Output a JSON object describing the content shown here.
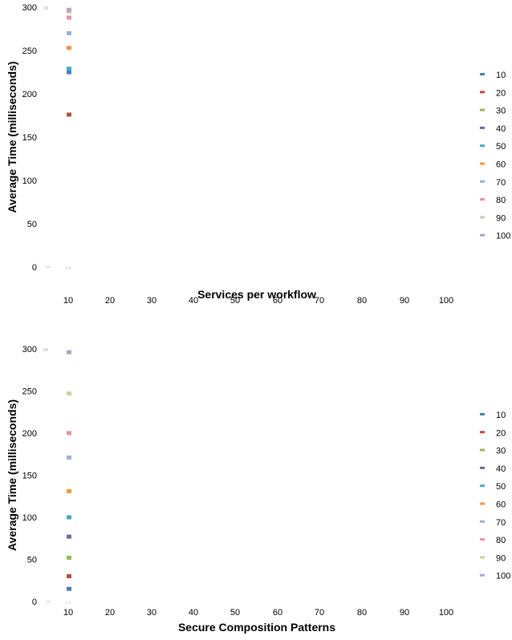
{
  "chart_data": [
    {
      "type": "scatter",
      "title": "",
      "xlabel": "Services per workflow",
      "ylabel": "Average Time (milliseconds)",
      "xlim": [
        0,
        110
      ],
      "ylim": [
        0,
        300
      ],
      "x_ticks": [
        "10",
        "20",
        "30",
        "40",
        "50",
        "60",
        "70",
        "80",
        "90",
        "100"
      ],
      "y_ticks": [
        "0",
        "50",
        "100",
        "150",
        "200",
        "250",
        "300"
      ],
      "grid": false,
      "legend_position": "right",
      "series": [
        {
          "name": "10",
          "color": "#4a7ebb",
          "points": [
            [
              10,
              225
            ]
          ]
        },
        {
          "name": "20",
          "color": "#be4b48",
          "points": [
            [
              10,
              176
            ]
          ]
        },
        {
          "name": "30",
          "color": "#98b954",
          "points": [
            [
              10,
              296
            ]
          ]
        },
        {
          "name": "40",
          "color": "#7d60a0",
          "points": [
            [
              10,
              296
            ]
          ]
        },
        {
          "name": "50",
          "color": "#46aac5",
          "points": [
            [
              10,
              229
            ]
          ]
        },
        {
          "name": "60",
          "color": "#f79646",
          "points": [
            [
              10,
              253
            ]
          ]
        },
        {
          "name": "70",
          "color": "#95b3d7",
          "points": [
            [
              10,
              270
            ]
          ]
        },
        {
          "name": "80",
          "color": "#e6949a",
          "points": [
            [
              10,
              288
            ]
          ]
        },
        {
          "name": "90",
          "color": "#c3d69b",
          "points": [
            [
              10,
              295
            ]
          ]
        },
        {
          "name": "100",
          "color": "#b3a2c7",
          "points": [
            [
              10,
              297
            ]
          ]
        }
      ]
    },
    {
      "type": "scatter",
      "title": "",
      "xlabel": "Secure Composition Patterns",
      "ylabel": "Average Time (milliseconds)",
      "xlim": [
        0,
        110
      ],
      "ylim": [
        0,
        300
      ],
      "x_ticks": [
        "10",
        "20",
        "30",
        "40",
        "50",
        "60",
        "70",
        "80",
        "90",
        "100"
      ],
      "y_ticks": [
        "0",
        "50",
        "100",
        "150",
        "200",
        "250",
        "300"
      ],
      "grid": false,
      "legend_position": "right",
      "series": [
        {
          "name": "10",
          "color": "#4a7ebb",
          "points": [
            [
              10,
              15
            ]
          ]
        },
        {
          "name": "20",
          "color": "#be4b48",
          "points": [
            [
              10,
              30
            ]
          ]
        },
        {
          "name": "30",
          "color": "#98b954",
          "points": [
            [
              10,
              52
            ]
          ]
        },
        {
          "name": "40",
          "color": "#7d60a0",
          "points": [
            [
              10,
              77
            ]
          ]
        },
        {
          "name": "50",
          "color": "#46aac5",
          "points": [
            [
              10,
              100
            ]
          ]
        },
        {
          "name": "60",
          "color": "#f79646",
          "points": [
            [
              10,
              131
            ]
          ]
        },
        {
          "name": "70",
          "color": "#95b3d7",
          "points": [
            [
              10,
              171
            ]
          ]
        },
        {
          "name": "80",
          "color": "#e6949a",
          "points": [
            [
              10,
              200
            ]
          ]
        },
        {
          "name": "90",
          "color": "#c3d69b",
          "points": [
            [
              10,
              247
            ]
          ]
        },
        {
          "name": "100",
          "color": "#b3a2c7",
          "points": [
            [
              10,
              296
            ]
          ]
        }
      ]
    }
  ]
}
